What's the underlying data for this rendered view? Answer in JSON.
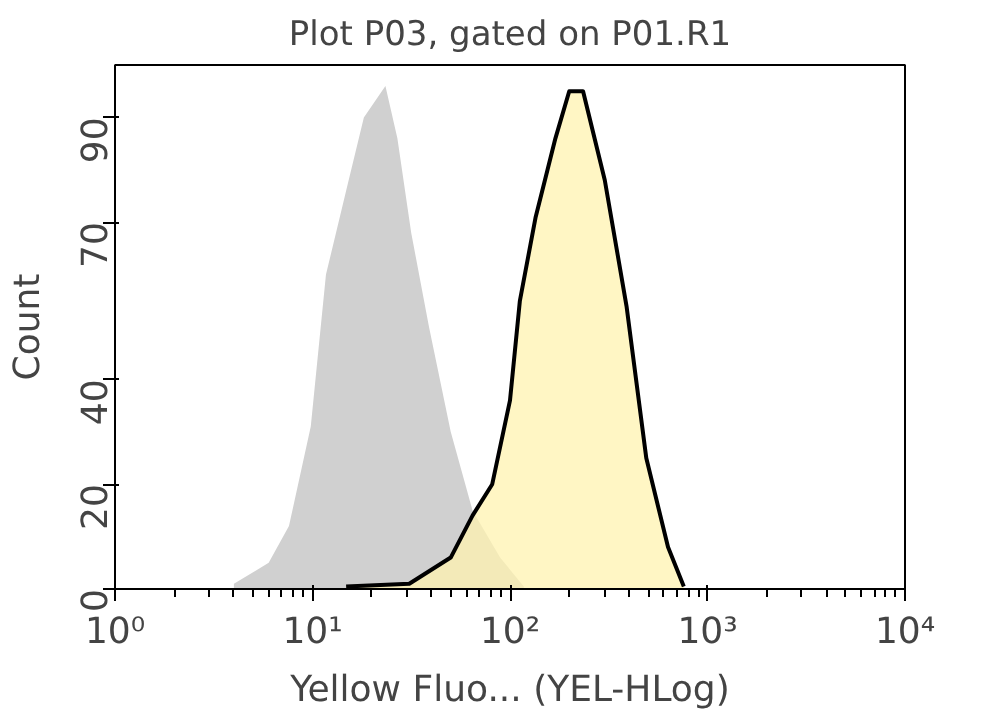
{
  "chart_data": {
    "type": "area",
    "title": "Plot P03, gated on P01.R1",
    "xlabel": "Yellow Fluo... (YEL-HLog)",
    "ylabel": "Count",
    "log": "x",
    "grid": false,
    "xlim": [
      1,
      10000
    ],
    "xticks": [
      {
        "value": 1,
        "label": "10⁰"
      },
      {
        "value": 10,
        "label": "10¹"
      },
      {
        "value": 100,
        "label": "10²"
      },
      {
        "value": 1000,
        "label": "10³"
      },
      {
        "value": 10000,
        "label": "10⁴"
      }
    ],
    "ylim": [
      0,
      100
    ],
    "yticks": [
      0,
      20,
      40,
      70,
      90
    ],
    "series": [
      {
        "color": "#d0d0d0",
        "x": [
          4.0,
          6.0,
          7.6,
          9.8,
          11.7,
          14.8,
          18.2,
          23.4,
          26.9,
          31.6,
          38.9,
          50.1,
          64.6,
          89.1,
          117.5
        ],
        "values": [
          1,
          5,
          12,
          31,
          60,
          76,
          90,
          96,
          86,
          68,
          50,
          30,
          15,
          6,
          0.5
        ]
      },
      {
        "color": "#fff3b0",
        "line_style": "solid",
        "x": [
          14.8,
          30.9,
          50.1,
          64.6,
          81.3,
          100,
          112.2,
          134.9,
          154.9,
          169.8,
          199.5,
          234.4,
          302.0,
          389.0,
          489.8,
          631.0,
          758.6
        ],
        "values": [
          0.5,
          1,
          6,
          14,
          20,
          36,
          55,
          71,
          80,
          86,
          95,
          95,
          78,
          54,
          25,
          8,
          0.5
        ]
      }
    ]
  }
}
